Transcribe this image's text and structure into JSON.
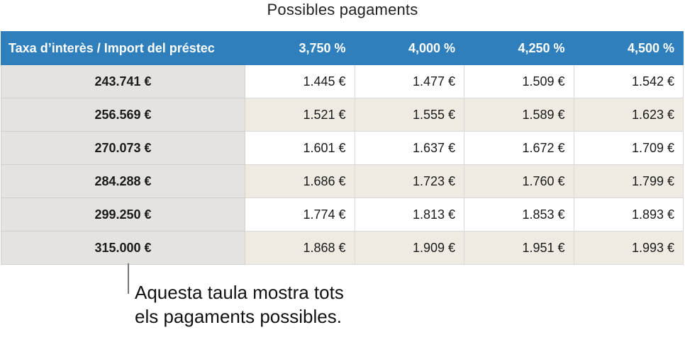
{
  "title": "Possibles pagaments",
  "table": {
    "corner_header": "Taxa d’interès / Import del préstec",
    "rate_headers": [
      "3,750 %",
      "4,000 %",
      "4,250 %",
      "4,500 %"
    ],
    "rows": [
      {
        "amount": "243.741 €",
        "values": [
          "1.445 €",
          "1.477 €",
          "1.509 €",
          "1.542 €"
        ]
      },
      {
        "amount": "256.569 €",
        "values": [
          "1.521 €",
          "1.555 €",
          "1.589 €",
          "1.623 €"
        ]
      },
      {
        "amount": "270.073 €",
        "values": [
          "1.601 €",
          "1.637 €",
          "1.672 €",
          "1.709 €"
        ]
      },
      {
        "amount": "284.288 €",
        "values": [
          "1.686 €",
          "1.723 €",
          "1.760 €",
          "1.799 €"
        ]
      },
      {
        "amount": "299.250 €",
        "values": [
          "1.774 €",
          "1.813 €",
          "1.853 €",
          "1.893 €"
        ]
      },
      {
        "amount": "315.000 €",
        "values": [
          "1.868 €",
          "1.909 €",
          "1.951 €",
          "1.993 €"
        ]
      }
    ]
  },
  "callout": {
    "line1": "Aquesta taula mostra tots",
    "line2": "els pagaments possibles."
  },
  "colors": {
    "header_bg": "#2f7fbd",
    "row_header_bg": "#e4e3df",
    "alt_row_bg": "#efebe3"
  }
}
